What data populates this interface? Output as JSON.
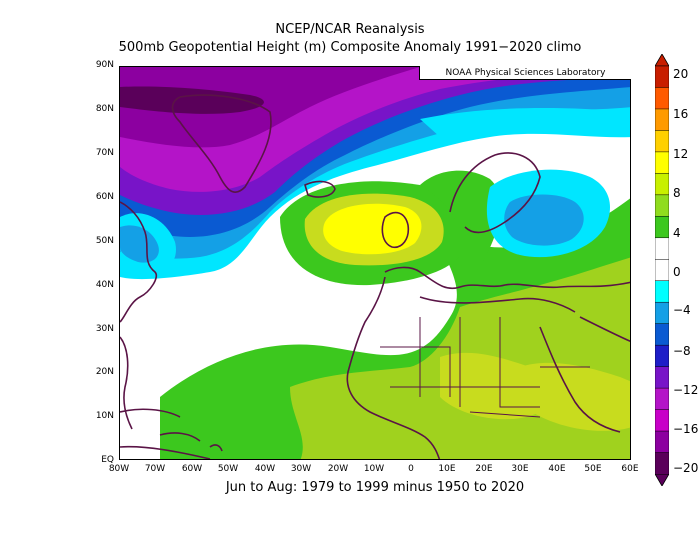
{
  "header": {
    "title_line1": "NCEP/NCAR Reanalysis",
    "title_line2": "500mb Geopotential Height (m) Composite Anomaly 1991−2020 climo"
  },
  "footer": {
    "period": "Jun to Aug: 1979 to 1999 minus 1950 to 2020"
  },
  "credit": "NOAA Physical Sciences Laboratory",
  "axes": {
    "lat_labels": [
      "90N",
      "80N",
      "70N",
      "60N",
      "50N",
      "40N",
      "30N",
      "20N",
      "10N",
      "EQ"
    ],
    "lon_labels": [
      "80W",
      "70W",
      "60W",
      "50W",
      "40W",
      "30W",
      "20W",
      "10W",
      "0",
      "10E",
      "20E",
      "30E",
      "40E",
      "50E",
      "60E"
    ]
  },
  "colorbar": {
    "labels": [
      "20",
      "16",
      "12",
      "8",
      "4",
      "0",
      "−4",
      "−8",
      "−12",
      "−16",
      "−20"
    ],
    "colors": [
      "#c81e00",
      "#ff5a00",
      "#ff9a00",
      "#ffd000",
      "#ffff00",
      "#c8f000",
      "#90dc1e",
      "#3cc81e",
      "#ffffff",
      "#ffffff",
      "#00ffff",
      "#14a0e6",
      "#0a5ad2",
      "#1e1ec8",
      "#7814c8",
      "#b414c8",
      "#c800c8",
      "#8c00a0",
      "#5a005a"
    ]
  },
  "colors": {
    "coast": "#5a1446",
    "negative_strong": "#8c00a0",
    "negative_mid": "#b414c8",
    "negative_blue": "#0a5ad2",
    "negative_light": "#00e6ff",
    "positive_green": "#3cc81e",
    "positive_lime": "#a0d21e",
    "positive_yellow": "#ffff00",
    "positive_olive": "#c8dc1e"
  }
}
